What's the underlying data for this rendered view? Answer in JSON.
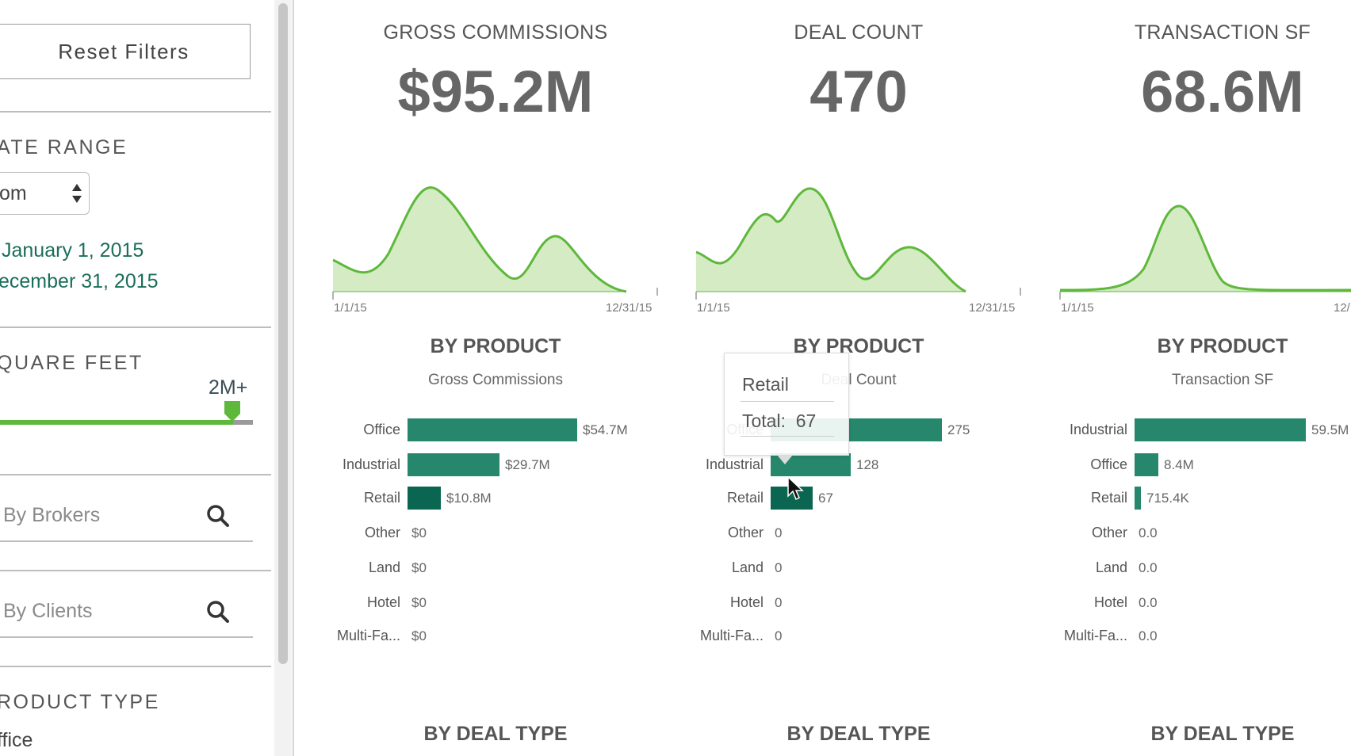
{
  "sidebar": {
    "reset_label": "Reset Filters",
    "date_range_title": "ATE RANGE",
    "date_select_value": "om",
    "date_from": "January 1, 2015",
    "date_to": "ecember 31, 2015",
    "square_feet_title": "QUARE FEET",
    "slider_value_label": "2M+",
    "slider_level_fraction": 0.92,
    "brokers_placeholder": "By Brokers",
    "clients_placeholder": "By Clients",
    "product_type_title": "RODUCT TYPE",
    "product_option": "ffice"
  },
  "kpis": [
    {
      "title": "GROSS COMMISSIONS",
      "value": "$95.2M",
      "spark_start": "1/1/15",
      "spark_end": "12/31/15"
    },
    {
      "title": "DEAL COUNT",
      "value": "470",
      "spark_start": "1/1/15",
      "spark_end": "12/31/15"
    },
    {
      "title": "TRANSACTION SF",
      "value": "68.6M",
      "spark_start": "1/1/15",
      "spark_end": "12/"
    }
  ],
  "section_titles": {
    "by_product": "BY PRODUCT",
    "by_deal_type": "BY DEAL TYPE"
  },
  "chart_data": [
    {
      "type": "bar",
      "title": "BY PRODUCT",
      "subtitle": "Gross Commissions",
      "categories": [
        "Office",
        "Industrial",
        "Retail",
        "Other",
        "Land",
        "Hotel",
        "Multi-Fa..."
      ],
      "values": [
        54.7,
        29.7,
        10.8,
        0,
        0,
        0,
        0
      ],
      "labels": [
        "$54.7M",
        "$29.7M",
        "$10.8M",
        "$0",
        "$0",
        "$0",
        "$0"
      ],
      "unit": "M"
    },
    {
      "type": "bar",
      "title": "BY PRODUCT",
      "subtitle": "Deal Count",
      "categories": [
        "Office",
        "Industrial",
        "Retail",
        "Other",
        "Land",
        "Hotel",
        "Multi-Fa..."
      ],
      "values": [
        275,
        128,
        67,
        0,
        0,
        0,
        0
      ],
      "labels": [
        "275",
        "128",
        "67",
        "0",
        "0",
        "0",
        "0"
      ]
    },
    {
      "type": "bar",
      "title": "BY PRODUCT",
      "subtitle": "Transaction SF",
      "categories": [
        "Industrial",
        "Office",
        "Retail",
        "Other",
        "Land",
        "Hotel",
        "Multi-Fa..."
      ],
      "values": [
        59.5,
        8.4,
        0.7154,
        0,
        0,
        0,
        0
      ],
      "labels": [
        "59.5M",
        "8.4M",
        "715.4K",
        "0.0",
        "0.0",
        "0.0",
        "0.0"
      ],
      "unit": "M"
    }
  ],
  "tooltip": {
    "title": "Retail",
    "total_label": "Total:",
    "total_value": "67"
  },
  "colors": {
    "accent_green": "#5eb83b",
    "bar": "#26876c",
    "bar_hover": "#0a6650",
    "spark_fill": "#d4ebc4",
    "date_text": "#1a6e5a"
  }
}
